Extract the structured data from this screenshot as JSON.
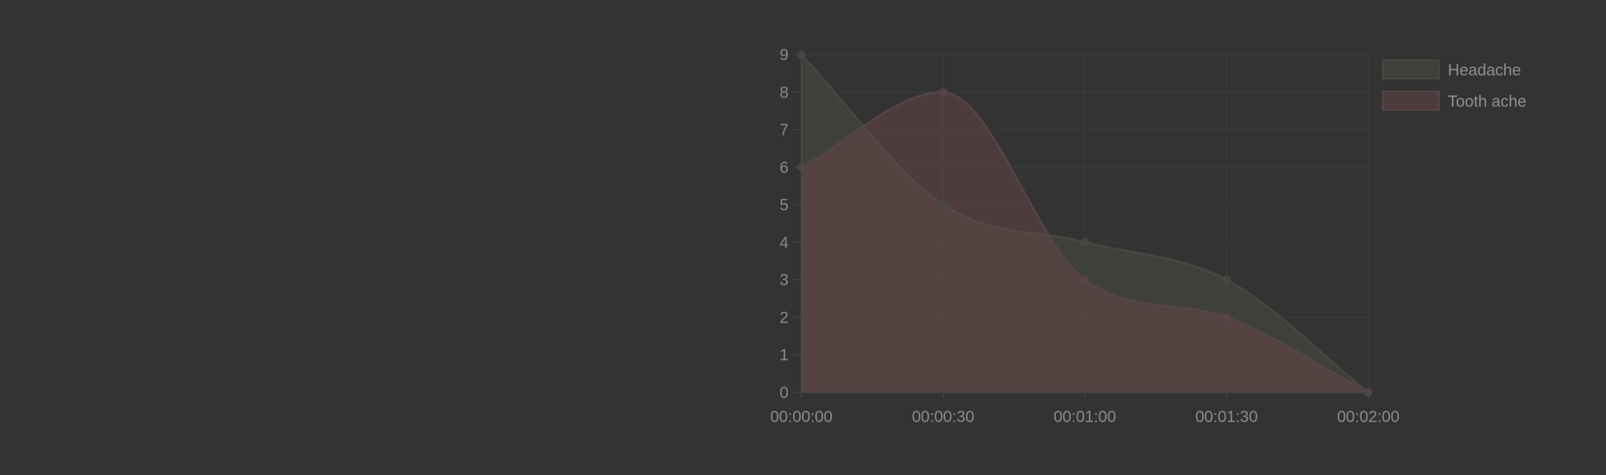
{
  "chart_data": {
    "type": "area",
    "categories": [
      "00:00:00",
      "00:00:30",
      "00:01:00",
      "00:01:30",
      "00:02:00"
    ],
    "series": [
      {
        "name": "Headache",
        "values": [
          9,
          5,
          4,
          3,
          0
        ],
        "color": "#3d3d3a",
        "fill": "rgba(74,74,66,0.55)",
        "stroke": "#484842"
      },
      {
        "name": "Tooth ache",
        "values": [
          6,
          8,
          3,
          2,
          0
        ],
        "color": "#4b3a3b",
        "fill": "rgba(110,70,74,0.45)",
        "stroke": "#55454a"
      }
    ],
    "ylim": [
      0,
      9
    ],
    "yticks": [
      0,
      1,
      2,
      3,
      4,
      5,
      6,
      7,
      8,
      9
    ],
    "grid": true,
    "legend_position": "top-right",
    "title": "",
    "xlabel": "",
    "ylabel": ""
  },
  "colors": {
    "background": "#333333",
    "grid": "#3c3c3c",
    "axis": "#4a4a4a",
    "text": "#8a8a8a"
  }
}
